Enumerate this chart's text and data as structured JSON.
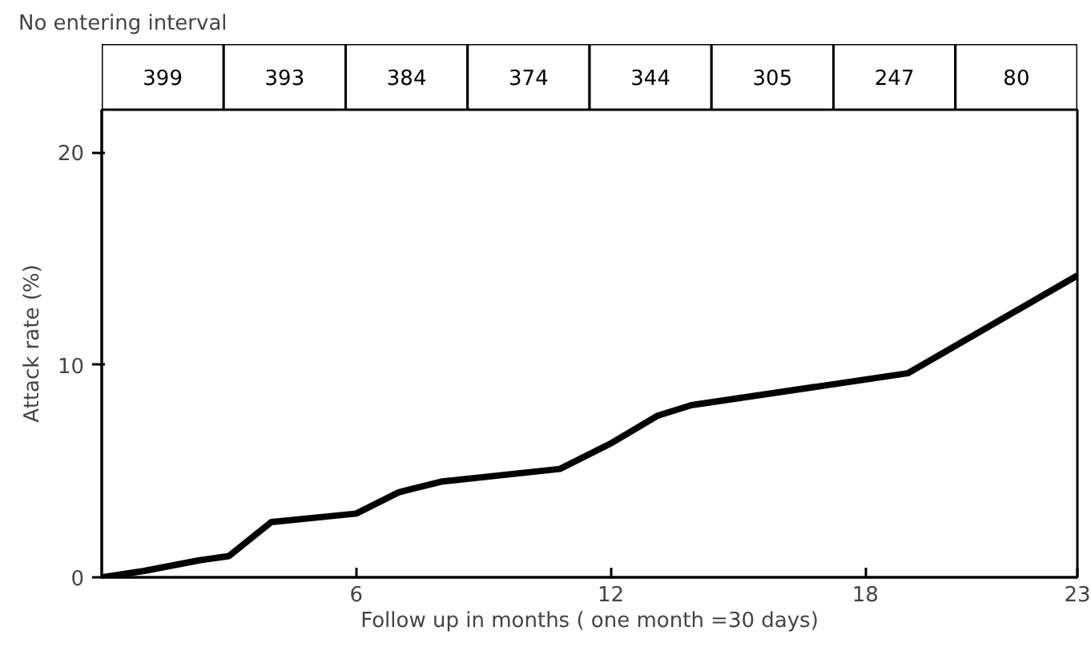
{
  "chart_data": [
    {
      "type": "other",
      "title": "No entering interval",
      "categories": [
        null,
        null,
        null,
        null,
        null,
        null,
        null,
        null
      ],
      "values": [
        399,
        393,
        384,
        374,
        344,
        305,
        247,
        80
      ],
      "data_labels": true
    },
    {
      "type": "line",
      "xlabel": "Follow up in months ( one month =30 days)",
      "ylabel": "Attack rate (%)",
      "x": [
        0,
        1,
        2.3,
        3,
        4,
        6,
        7,
        8,
        10.8,
        12,
        13.1,
        13.9,
        19,
        23
      ],
      "series": [
        {
          "color": "#000000",
          "values": [
            0,
            0.3,
            0.8,
            1.0,
            2.6,
            3.0,
            4.0,
            4.5,
            5.1,
            6.3,
            7.6,
            8.1,
            9.6,
            14.2
          ]
        }
      ],
      "xlim": [
        0,
        23
      ],
      "xticks": [
        6,
        12,
        18,
        23
      ],
      "ylim": [
        0,
        22
      ],
      "yticks": [
        0,
        10,
        20
      ],
      "grid": false,
      "line_style": "solid"
    }
  ]
}
